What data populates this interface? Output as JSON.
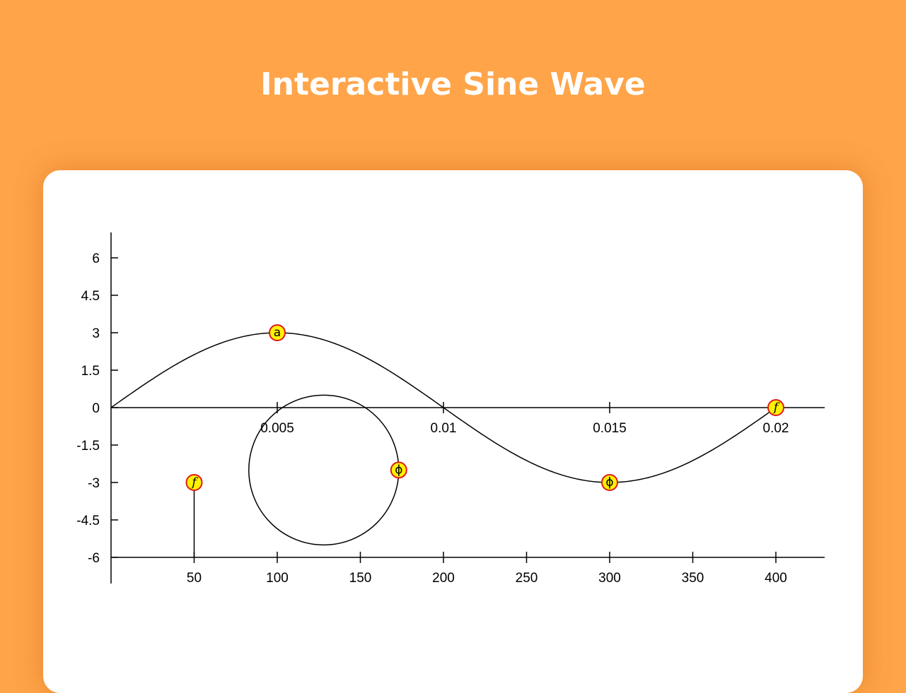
{
  "page": {
    "title": "Interactive Sine Wave"
  },
  "colors": {
    "background": "#FFA449",
    "card": "#FFFFFF",
    "handle_fill": "#FFF200",
    "handle_stroke": "#E01818",
    "line": "#000000"
  },
  "chart_data": {
    "type": "line",
    "title": "",
    "xlabel": "",
    "ylabel": "",
    "grid": false,
    "legend": "none",
    "y_axis": {
      "ticks": [
        6,
        4.5,
        3,
        1.5,
        0,
        -1.5,
        -3,
        -4.5,
        -6
      ],
      "tick_labels": [
        "6",
        "4.5",
        "3",
        "1.5",
        "0",
        "-1.5",
        "-3",
        "-4.5",
        "-6"
      ],
      "range": [
        -6,
        6
      ]
    },
    "time_axis": {
      "ticks": [
        0.005,
        0.01,
        0.015,
        0.02
      ],
      "tick_labels": [
        "0.005",
        "0.01",
        "0.015",
        "0.02"
      ],
      "range": [
        0,
        0.02
      ]
    },
    "frequency_axis": {
      "ticks": [
        50,
        100,
        150,
        200,
        250,
        300,
        350,
        400
      ],
      "tick_labels": [
        "50",
        "100",
        "150",
        "200",
        "250",
        "300",
        "350",
        "400"
      ],
      "range": [
        0,
        400
      ]
    },
    "wave": {
      "amplitude": 3,
      "frequency": 50,
      "phase": 0,
      "t_range": [
        0,
        0.02
      ]
    },
    "phase_circle": {
      "radius": 3
    },
    "handles": [
      {
        "id": "amplitude",
        "label": "a",
        "axis": "time",
        "x": 0.005,
        "y": 3
      },
      {
        "id": "period-end",
        "label": "f",
        "axis": "time",
        "x": 0.02,
        "y": 0
      },
      {
        "id": "phase-on-wave",
        "label": "ϕ",
        "axis": "time",
        "x": 0.015,
        "y": -3
      },
      {
        "id": "phase-on-circle",
        "label": "ϕ",
        "axis": "circle",
        "angle_deg": 0
      },
      {
        "id": "frequency-stem",
        "label": "f",
        "axis": "frequency",
        "x": 50,
        "y": -3
      }
    ]
  }
}
